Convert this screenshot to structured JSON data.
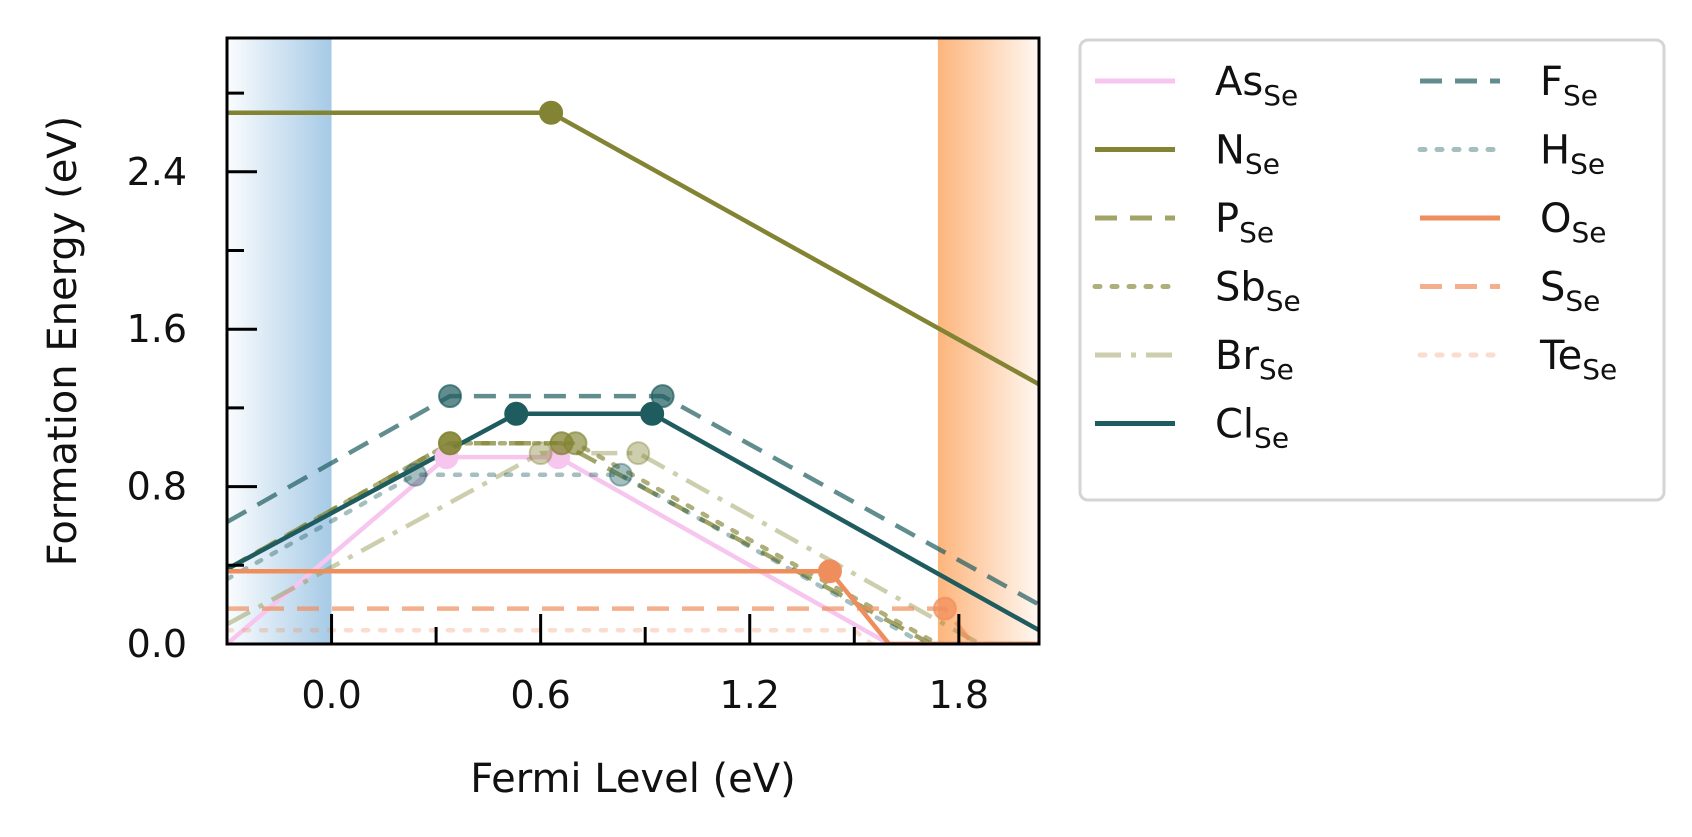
{
  "chart_data": {
    "type": "line",
    "xlabel": "Fermi Level (eV)",
    "ylabel": "Formation Energy (eV)",
    "xlim": [
      -0.3,
      2.03
    ],
    "ylim": [
      0.0,
      3.08
    ],
    "xticks": [
      0.0,
      0.6,
      1.2,
      1.8
    ],
    "xtick_labels": [
      "0.0",
      "0.6",
      "1.2",
      "1.8"
    ],
    "xminor": [
      0.3,
      0.9,
      1.5
    ],
    "yticks": [
      0.0,
      0.8,
      1.6,
      2.4
    ],
    "ytick_labels": [
      "0.0",
      "0.8",
      "1.6",
      "2.4"
    ],
    "yminor": [
      0.4,
      1.2,
      2.0,
      2.8
    ],
    "band_edges": {
      "vbm": {
        "x": 0.0,
        "color": "#a6cae6"
      },
      "cbm": {
        "x": 1.74,
        "color": "#fdb57c"
      }
    },
    "legend": {
      "placement": "outside upper right",
      "columns": 2
    },
    "series": [
      {
        "name": "As",
        "subscript": "Se",
        "color": "#f7c6ef",
        "dash": "solid",
        "alpha": 1.0,
        "points": [
          [
            -0.3,
            0.0
          ],
          [
            0.33,
            0.95
          ],
          [
            0.65,
            0.95
          ],
          [
            1.6,
            0.0
          ],
          [
            2.03,
            0.0
          ]
        ],
        "markers": [
          [
            0.33,
            0.95
          ],
          [
            0.65,
            0.95
          ]
        ]
      },
      {
        "name": "N",
        "subscript": "Se",
        "color": "#838433",
        "dash": "solid",
        "alpha": 1.0,
        "points": [
          [
            -0.3,
            2.7
          ],
          [
            0.63,
            2.7
          ],
          [
            2.03,
            1.32
          ]
        ],
        "markers": [
          [
            0.63,
            2.7
          ]
        ]
      },
      {
        "name": "P",
        "subscript": "Se",
        "color": "#838433",
        "dash": "dashed",
        "alpha": 0.75,
        "points": [
          [
            -0.3,
            0.38
          ],
          [
            0.34,
            1.02
          ],
          [
            0.66,
            1.02
          ],
          [
            1.72,
            0.0
          ],
          [
            2.03,
            0.0
          ]
        ],
        "markers": [
          [
            0.34,
            1.02
          ],
          [
            0.66,
            1.02
          ]
        ]
      },
      {
        "name": "Sb",
        "subscript": "Se",
        "color": "#838433",
        "dash": "dotted",
        "alpha": 0.65,
        "points": [
          [
            -0.3,
            0.38
          ],
          [
            0.34,
            1.02
          ],
          [
            0.7,
            1.02
          ],
          [
            1.74,
            0.0
          ],
          [
            2.03,
            0.0
          ]
        ],
        "markers": [
          [
            0.34,
            1.02
          ],
          [
            0.7,
            1.02
          ]
        ]
      },
      {
        "name": "Br",
        "subscript": "Se",
        "color": "#838433",
        "dash": "dashdot",
        "alpha": 0.4,
        "points": [
          [
            -0.3,
            0.1
          ],
          [
            0.6,
            0.97
          ],
          [
            0.88,
            0.97
          ],
          [
            1.86,
            0.0
          ],
          [
            2.03,
            0.0
          ]
        ],
        "markers": [
          [
            0.6,
            0.97
          ],
          [
            0.88,
            0.97
          ]
        ]
      },
      {
        "name": "Cl",
        "subscript": "Se",
        "color": "#1f5c5f",
        "dash": "solid",
        "alpha": 1.0,
        "points": [
          [
            -0.3,
            0.38
          ],
          [
            0.53,
            1.17
          ],
          [
            0.92,
            1.17
          ],
          [
            2.03,
            0.07
          ]
        ],
        "markers": [
          [
            0.53,
            1.17
          ],
          [
            0.92,
            1.17
          ]
        ]
      },
      {
        "name": "F",
        "subscript": "Se",
        "color": "#1f5c5f",
        "dash": "dashed",
        "alpha": 0.7,
        "points": [
          [
            -0.3,
            0.62
          ],
          [
            0.34,
            1.26
          ],
          [
            0.95,
            1.26
          ],
          [
            2.03,
            0.2
          ]
        ],
        "markers": [
          [
            0.34,
            1.26
          ],
          [
            0.95,
            1.26
          ]
        ]
      },
      {
        "name": "H",
        "subscript": "Se",
        "color": "#1f5c5f",
        "dash": "dotted",
        "alpha": 0.4,
        "points": [
          [
            -0.3,
            0.33
          ],
          [
            0.24,
            0.86
          ],
          [
            0.83,
            0.86
          ],
          [
            1.7,
            0.0
          ],
          [
            2.03,
            0.0
          ]
        ],
        "markers": [
          [
            0.24,
            0.86
          ],
          [
            0.83,
            0.86
          ]
        ]
      },
      {
        "name": "O",
        "subscript": "Se",
        "color": "#ef8e5d",
        "dash": "solid",
        "alpha": 1.0,
        "points": [
          [
            -0.3,
            0.37
          ],
          [
            1.43,
            0.37
          ],
          [
            1.6,
            0.0
          ],
          [
            2.03,
            0.0
          ]
        ],
        "markers": [
          [
            1.43,
            0.37
          ]
        ]
      },
      {
        "name": "S",
        "subscript": "Se",
        "color": "#ef8e5d",
        "dash": "dashed",
        "alpha": 0.7,
        "points": [
          [
            -0.3,
            0.18
          ],
          [
            1.76,
            0.18
          ],
          [
            1.84,
            0.0
          ],
          [
            2.03,
            0.0
          ]
        ],
        "markers": [
          [
            1.76,
            0.18
          ]
        ]
      },
      {
        "name": "Te",
        "subscript": "Se",
        "color": "#ef8e5d",
        "dash": "dotted",
        "alpha": 0.3,
        "points": [
          [
            -0.3,
            0.07
          ],
          [
            1.5,
            0.07
          ],
          [
            1.55,
            0.0
          ],
          [
            2.03,
            0.0
          ]
        ],
        "markers": []
      }
    ]
  }
}
